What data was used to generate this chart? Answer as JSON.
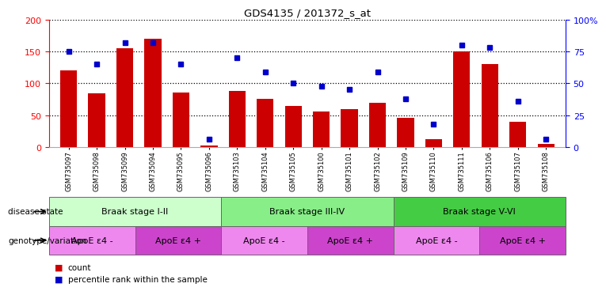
{
  "title": "GDS4135 / 201372_s_at",
  "samples": [
    "GSM735097",
    "GSM735098",
    "GSM735099",
    "GSM735094",
    "GSM735095",
    "GSM735096",
    "GSM735103",
    "GSM735104",
    "GSM735105",
    "GSM735100",
    "GSM735101",
    "GSM735102",
    "GSM735109",
    "GSM735110",
    "GSM735111",
    "GSM735106",
    "GSM735107",
    "GSM735108"
  ],
  "counts": [
    120,
    84,
    155,
    170,
    86,
    3,
    88,
    76,
    64,
    56,
    60,
    70,
    46,
    12,
    150,
    130,
    40,
    5
  ],
  "percentiles": [
    75,
    65,
    82,
    82,
    65,
    6,
    70,
    59,
    50,
    48,
    45,
    59,
    38,
    18,
    80,
    78,
    36,
    6
  ],
  "bar_color": "#cc0000",
  "dot_color": "#0000cc",
  "ylim_left": [
    0,
    200
  ],
  "ylim_right": [
    0,
    100
  ],
  "yticks_left": [
    0,
    50,
    100,
    150,
    200
  ],
  "yticks_right": [
    0,
    25,
    50,
    75,
    100
  ],
  "yticklabels_right": [
    "0",
    "25",
    "50",
    "75",
    "100%"
  ],
  "disease_state_groups": [
    {
      "label": "Braak stage I-II",
      "start": 0,
      "end": 6,
      "color": "#ccffcc"
    },
    {
      "label": "Braak stage III-IV",
      "start": 6,
      "end": 12,
      "color": "#88ee88"
    },
    {
      "label": "Braak stage V-VI",
      "start": 12,
      "end": 18,
      "color": "#44cc44"
    }
  ],
  "genotype_groups": [
    {
      "label": "ApoE ε4 -",
      "start": 0,
      "end": 3,
      "color": "#ee88ee"
    },
    {
      "label": "ApoE ε4 +",
      "start": 3,
      "end": 6,
      "color": "#cc44cc"
    },
    {
      "label": "ApoE ε4 -",
      "start": 6,
      "end": 9,
      "color": "#ee88ee"
    },
    {
      "label": "ApoE ε4 +",
      "start": 9,
      "end": 12,
      "color": "#cc44cc"
    },
    {
      "label": "ApoE ε4 -",
      "start": 12,
      "end": 15,
      "color": "#ee88ee"
    },
    {
      "label": "ApoE ε4 +",
      "start": 15,
      "end": 18,
      "color": "#cc44cc"
    }
  ],
  "row_label_disease": "disease state",
  "row_label_genotype": "genotype/variation",
  "legend_count_label": "count",
  "legend_pct_label": "percentile rank within the sample",
  "background_color": "#ffffff"
}
